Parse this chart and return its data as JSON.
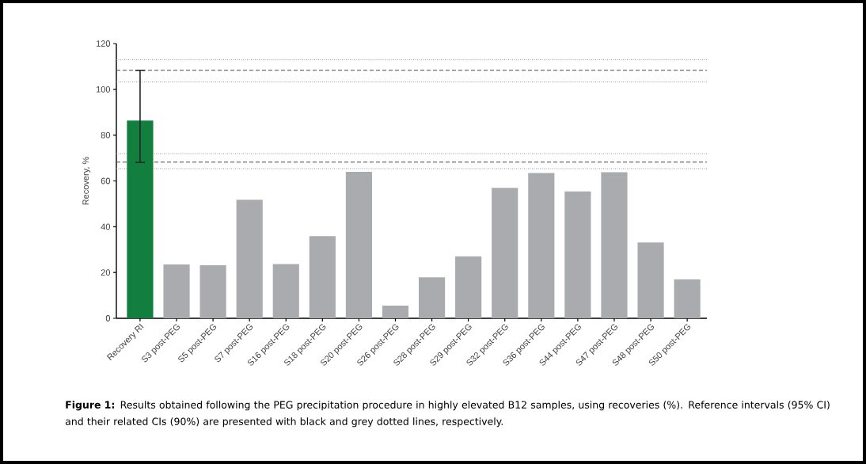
{
  "chart_data": {
    "type": "bar",
    "ylabel": "Recovery, %",
    "categories": [
      "Recovery RI",
      "S3 post-PEG",
      "S5 post-PEG",
      "S7 post-PEG",
      "S16 post-PEG",
      "S18 post-PEG",
      "S20 post-PEG",
      "S26 post-PEG",
      "S28 post-PEG",
      "S29 post-PEG",
      "S32 post-PEG",
      "S36 post-PEG",
      "S44 post-PEG",
      "S47 post-PEG",
      "S48 post-PEG",
      "S50 post-PEG"
    ],
    "values": [
      86.4,
      23.5,
      23.2,
      51.8,
      23.7,
      35.9,
      64.0,
      5.5,
      17.9,
      27.1,
      57.0,
      63.5,
      55.4,
      63.8,
      33.1,
      17.0
    ],
    "colors": [
      "#127f3f",
      "#aaabae",
      "#aaabae",
      "#aaabae",
      "#aaabae",
      "#aaabae",
      "#aaabae",
      "#aaabae",
      "#aaabae",
      "#aaabae",
      "#aaabae",
      "#aaabae",
      "#aaabae",
      "#aaabae",
      "#aaabae",
      "#aaabae"
    ],
    "errors": [
      [
        68.1,
        108.3
      ],
      null,
      null,
      null,
      null,
      null,
      null,
      null,
      null,
      null,
      null,
      null,
      null,
      null,
      null,
      null
    ],
    "ylim": [
      0,
      120
    ],
    "yticks": [
      0,
      20,
      40,
      60,
      80,
      100,
      120
    ],
    "ref_lines": [
      {
        "axis": "y",
        "value": 112.9,
        "color": "#999999",
        "line_style": "dotted"
      },
      {
        "axis": "y",
        "value": 108.3,
        "color": "#444444",
        "line_style": "dashed"
      },
      {
        "axis": "y",
        "value": 103.2,
        "color": "#999999",
        "line_style": "dotted"
      },
      {
        "axis": "y",
        "value": 71.9,
        "color": "#999999",
        "line_style": "dotted"
      },
      {
        "axis": "y",
        "value": 68.2,
        "color": "#444444",
        "line_style": "dashed"
      },
      {
        "axis": "y",
        "value": 65.4,
        "color": "#999999",
        "line_style": "dotted"
      }
    ],
    "annotations": [
      "**Figure 1:** Results obtained following the PEG precipitation procedure in highly elevated B12 samples, using recoveries (%). Reference intervals (95% CI) and their related CIs (90%) are presented with black and grey dotted lines, respectively."
    ]
  }
}
